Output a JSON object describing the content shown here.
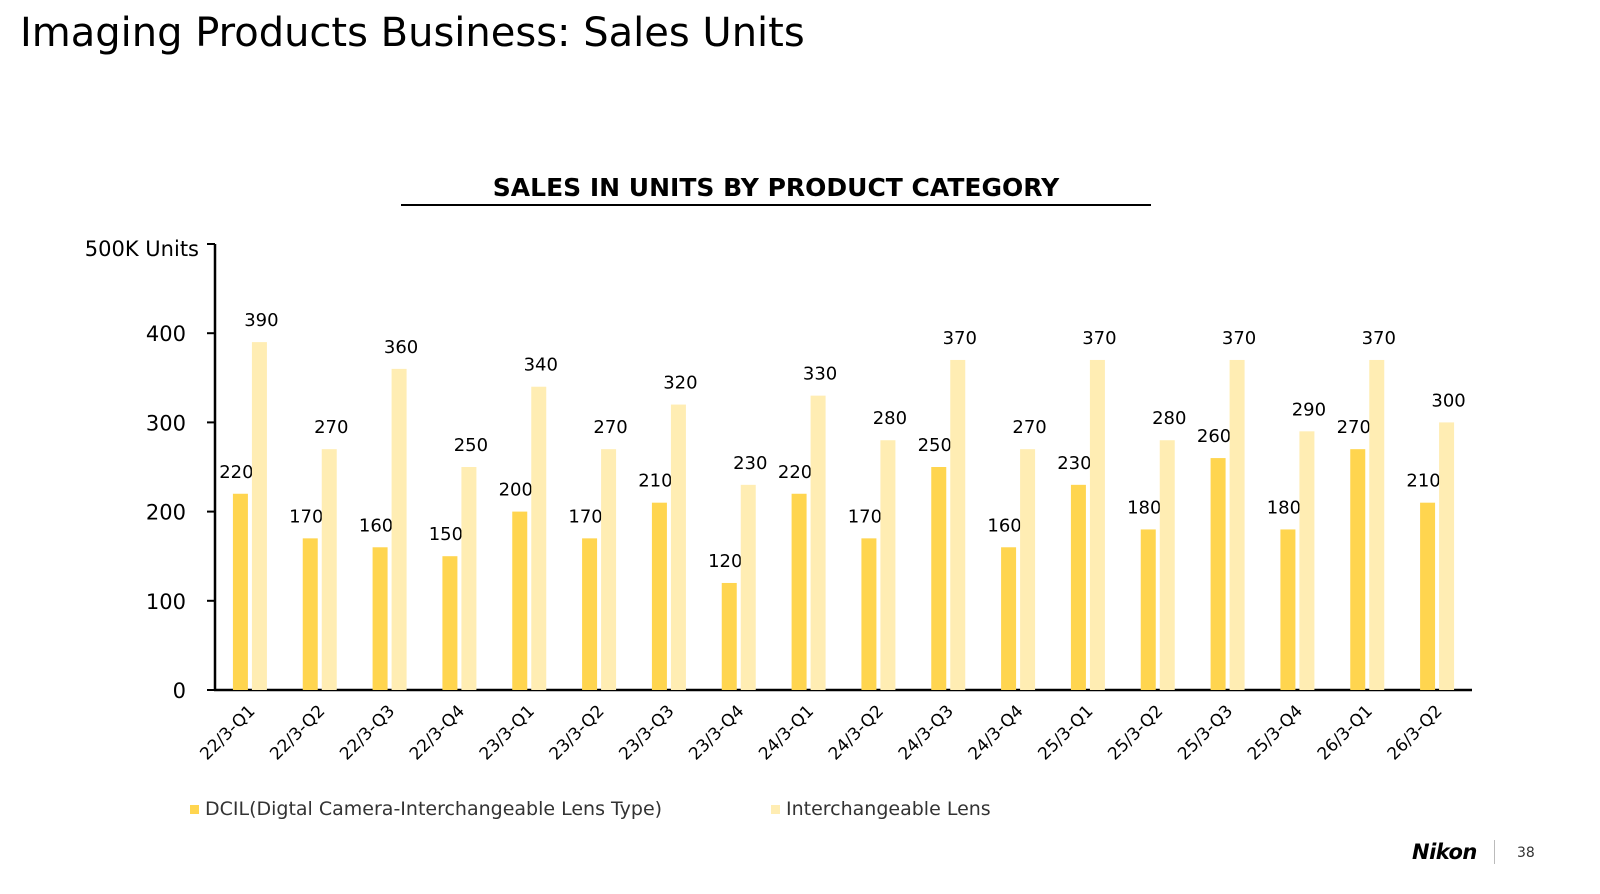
{
  "page_title": "Imaging Products Business: Sales Units",
  "footer": {
    "logo": "Nikon",
    "page_number": "38"
  },
  "colors": {
    "dcil": "#FFD54F",
    "lens": "#FFEDB3"
  },
  "chart_data": {
    "type": "bar",
    "title": "SALES IN UNITS BY PRODUCT CATEGORY",
    "ylabel": "500K Units",
    "ylim": [
      0,
      500
    ],
    "yticks": [
      0,
      100,
      200,
      300,
      400
    ],
    "grid": false,
    "legend_position": "bottom",
    "categories": [
      "22/3-Q1",
      "22/3-Q2",
      "22/3-Q3",
      "22/3-Q4",
      "23/3-Q1",
      "23/3-Q2",
      "23/3-Q3",
      "23/3-Q4",
      "24/3-Q1",
      "24/3-Q2",
      "24/3-Q3",
      "24/3-Q4",
      "25/3-Q1",
      "25/3-Q2",
      "25/3-Q3",
      "25/3-Q4",
      "26/3-Q1",
      "26/3-Q2"
    ],
    "series": [
      {
        "name": "DCIL(Digtal Camera-Interchangeable Lens Type)",
        "values": [
          220,
          170,
          160,
          150,
          200,
          170,
          210,
          120,
          220,
          170,
          250,
          160,
          230,
          180,
          260,
          180,
          270,
          210
        ]
      },
      {
        "name": "Interchangeable Lens",
        "values": [
          390,
          270,
          360,
          250,
          340,
          270,
          320,
          230,
          330,
          280,
          370,
          270,
          370,
          280,
          370,
          290,
          370,
          300
        ]
      }
    ]
  }
}
